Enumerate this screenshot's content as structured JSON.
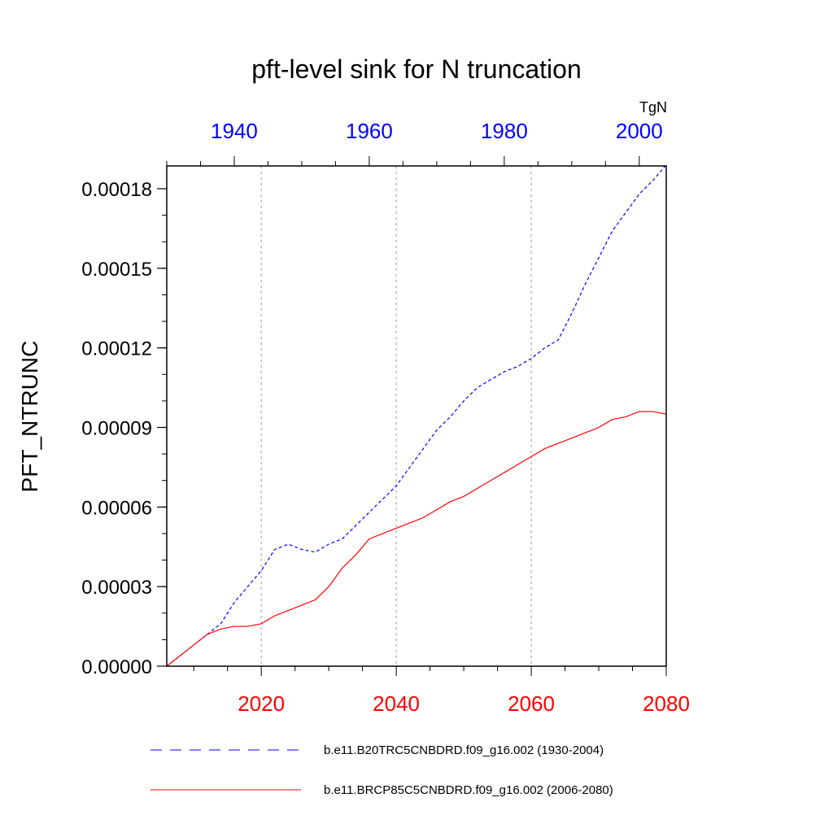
{
  "chart_data": {
    "type": "line",
    "title": "pft-level sink for N truncation",
    "units": "TgN",
    "ylabel": "PFT_NTRUNC",
    "ylim": [
      0,
      0.00018
    ],
    "yticks": [
      "0.00000",
      "0.00003",
      "0.00006",
      "0.00009",
      "0.00012",
      "0.00015",
      "0.00018"
    ],
    "ytick_values": [
      0,
      3e-05,
      6e-05,
      9e-05,
      0.00012,
      0.00015,
      0.00018
    ],
    "bottom_axis": {
      "range": [
        2006,
        2080
      ],
      "ticks": [
        "2020",
        "2040",
        "2060",
        "2080"
      ],
      "tick_values": [
        2020,
        2040,
        2060,
        2080
      ],
      "color": "#ff0000"
    },
    "top_axis": {
      "range": [
        1930,
        2004
      ],
      "ticks": [
        "1940",
        "1960",
        "1980",
        "2000"
      ],
      "tick_values": [
        1940,
        1960,
        1980,
        2000
      ],
      "color": "#0000ff"
    },
    "grid": "vertical dotted at bottom-axis major ticks",
    "legend_position": "bottom",
    "series": [
      {
        "name": "b.e11.B20TRC5CNBDRD.f09_g16.002 (1930-2004)",
        "axis": "top",
        "color": "#0000ff",
        "dash": "dashed",
        "x": [
          1930,
          1932,
          1934,
          1936,
          1938,
          1940,
          1942,
          1944,
          1946,
          1948,
          1950,
          1952,
          1954,
          1956,
          1958,
          1960,
          1962,
          1964,
          1966,
          1968,
          1970,
          1972,
          1974,
          1976,
          1978,
          1980,
          1982,
          1984,
          1986,
          1988,
          1990,
          1992,
          1994,
          1996,
          1998,
          2000,
          2002,
          2004
        ],
        "values": [
          0.0,
          4e-06,
          8e-06,
          1.2e-05,
          1.6e-05,
          2.4e-05,
          3e-05,
          3.6e-05,
          4.4e-05,
          4.6e-05,
          4.4e-05,
          4.3e-05,
          4.6e-05,
          4.8e-05,
          5.3e-05,
          5.8e-05,
          6.3e-05,
          6.8e-05,
          7.5e-05,
          8.2e-05,
          8.9e-05,
          9.4e-05,
          0.0001,
          0.000105,
          0.000108,
          0.000111,
          0.000113,
          0.000116,
          0.00012,
          0.000123,
          0.000133,
          0.000144,
          0.000154,
          0.000164,
          0.000171,
          0.000178,
          0.000183,
          0.000189
        ]
      },
      {
        "name": "b.e11.BRCP85C5CNBDRD.f09_g16.002 (2006-2080)",
        "axis": "bottom",
        "color": "#ff0000",
        "dash": "solid",
        "x": [
          2006,
          2008,
          2010,
          2012,
          2014,
          2016,
          2018,
          2020,
          2022,
          2024,
          2026,
          2028,
          2030,
          2032,
          2034,
          2036,
          2038,
          2040,
          2042,
          2044,
          2046,
          2048,
          2050,
          2052,
          2054,
          2056,
          2058,
          2060,
          2062,
          2064,
          2066,
          2068,
          2070,
          2072,
          2074,
          2076,
          2078,
          2080
        ],
        "values": [
          0.0,
          4e-06,
          8e-06,
          1.2e-05,
          1.4e-05,
          1.5e-05,
          1.5e-05,
          1.6e-05,
          1.9e-05,
          2.1e-05,
          2.3e-05,
          2.5e-05,
          3e-05,
          3.7e-05,
          4.2e-05,
          4.8e-05,
          5e-05,
          5.2e-05,
          5.4e-05,
          5.6e-05,
          5.9e-05,
          6.2e-05,
          6.4e-05,
          6.7e-05,
          7e-05,
          7.3e-05,
          7.6e-05,
          7.9e-05,
          8.2e-05,
          8.4e-05,
          8.6e-05,
          8.8e-05,
          9e-05,
          9.3e-05,
          9.4e-05,
          9.6e-05,
          9.6e-05,
          9.5e-05
        ]
      }
    ]
  }
}
